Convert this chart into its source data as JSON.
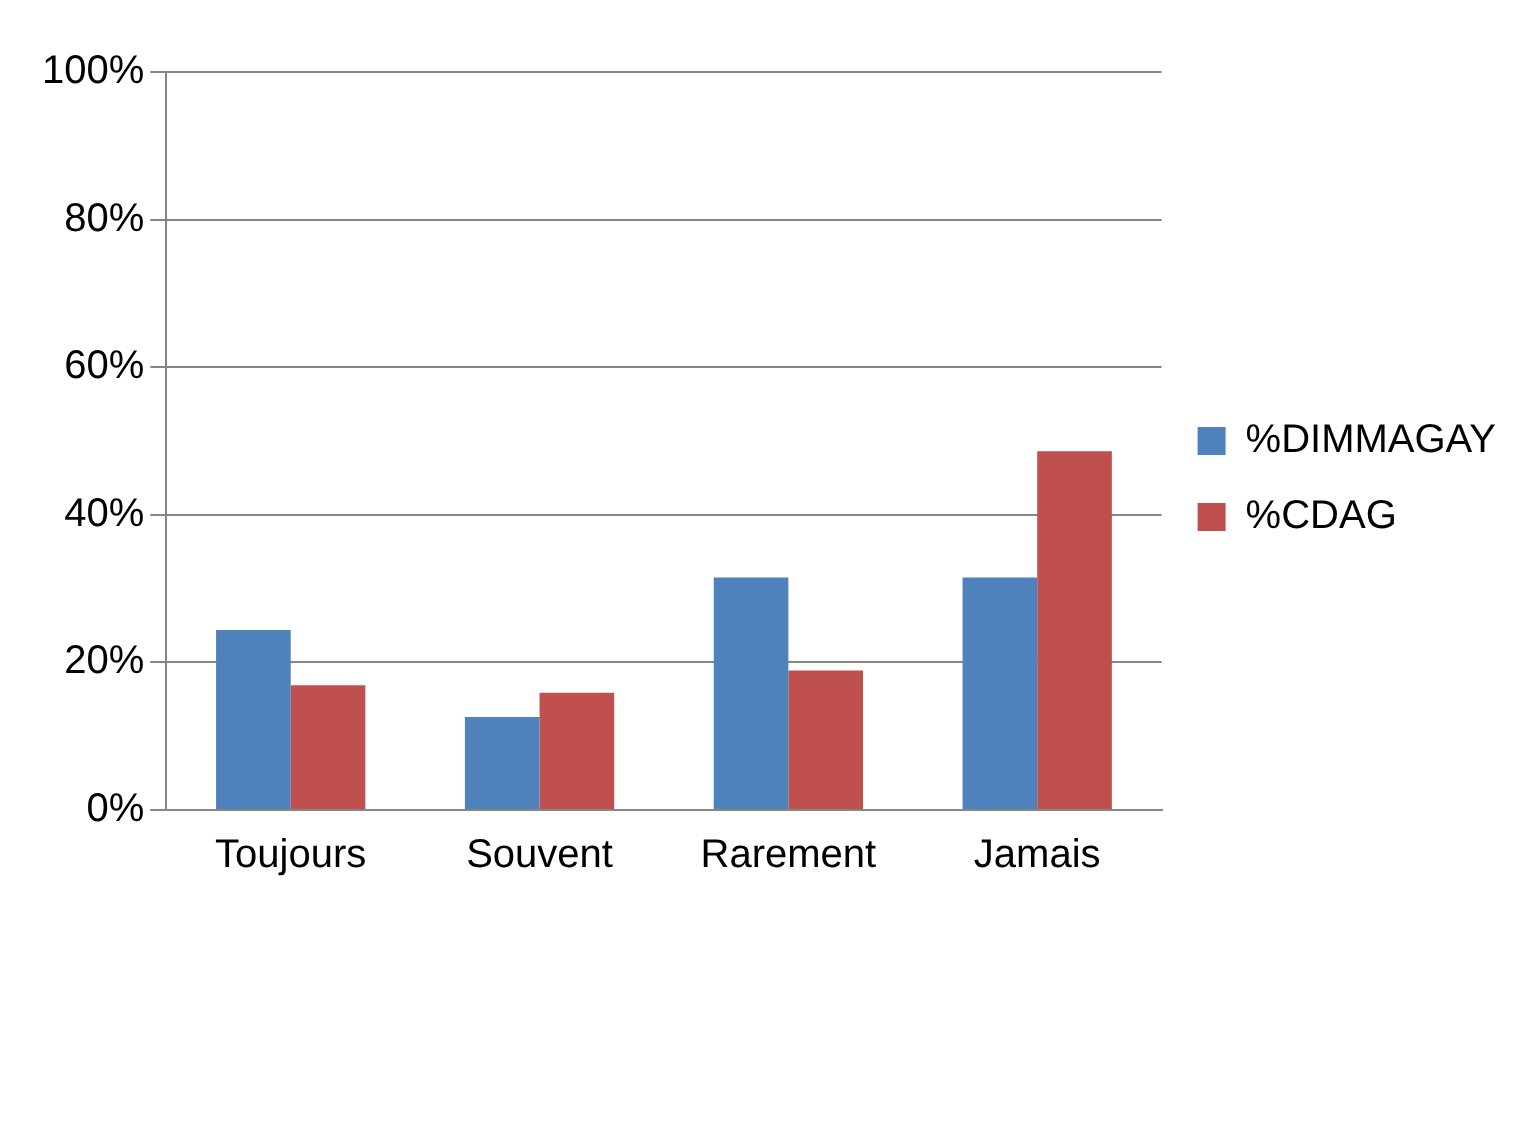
{
  "chart_data": {
    "type": "bar",
    "categories": [
      "Toujours",
      "Souvent",
      "Rarement",
      "Jamais"
    ],
    "series": [
      {
        "name": "%DIMMAGAY",
        "color": "#4f81bd",
        "values": [
          24.4,
          12.6,
          31.5,
          31.5
        ]
      },
      {
        "name": "%CDAG",
        "color": "#c0504d",
        "values": [
          16.9,
          15.9,
          18.9,
          48.6
        ]
      }
    ],
    "ylim": [
      0,
      100
    ],
    "yticks": [
      {
        "value": 0,
        "label": "0%"
      },
      {
        "value": 20,
        "label": "20%"
      },
      {
        "value": 40,
        "label": "40%"
      },
      {
        "value": 60,
        "label": "60%"
      },
      {
        "value": 80,
        "label": "80%"
      },
      {
        "value": 100,
        "label": "100%"
      }
    ],
    "grid": "y",
    "legend": "right"
  }
}
